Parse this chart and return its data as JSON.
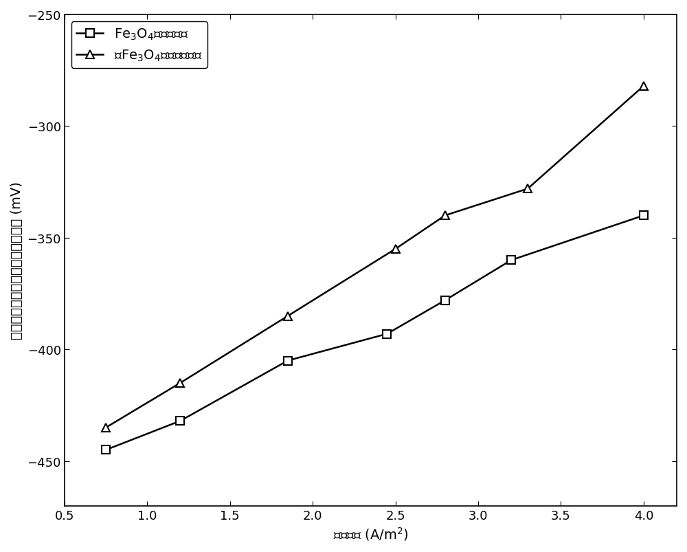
{
  "series1_label": "Fe$_3$O$_4$修饰的阳极",
  "series2_label": "无Fe$_3$O$_4$修饰对照阳极",
  "series1_x": [
    0.75,
    1.2,
    1.85,
    2.45,
    2.8,
    3.2,
    4.0
  ],
  "series1_y": [
    -445,
    -432,
    -405,
    -393,
    -378,
    -360,
    -340
  ],
  "series2_x": [
    0.75,
    1.2,
    1.85,
    2.5,
    2.8,
    3.3,
    4.0
  ],
  "series2_y": [
    -435,
    -415,
    -385,
    -355,
    -340,
    -328,
    -282
  ],
  "xlabel": "电流密度 (A/m$^2$)",
  "ylabel": "与饱和氯化钾电极对比所得的电位 (mV)",
  "xlim": [
    0.5,
    4.2
  ],
  "ylim": [
    -470,
    -250
  ],
  "yticks": [
    -450,
    -400,
    -350,
    -300,
    -250
  ],
  "xticks": [
    0.5,
    1.0,
    1.5,
    2.0,
    2.5,
    3.0,
    3.5,
    4.0
  ],
  "line_color": "#000000",
  "marker_size": 8,
  "linewidth": 1.8,
  "legend_fontsize": 14,
  "axis_fontsize": 14,
  "tick_fontsize": 13
}
